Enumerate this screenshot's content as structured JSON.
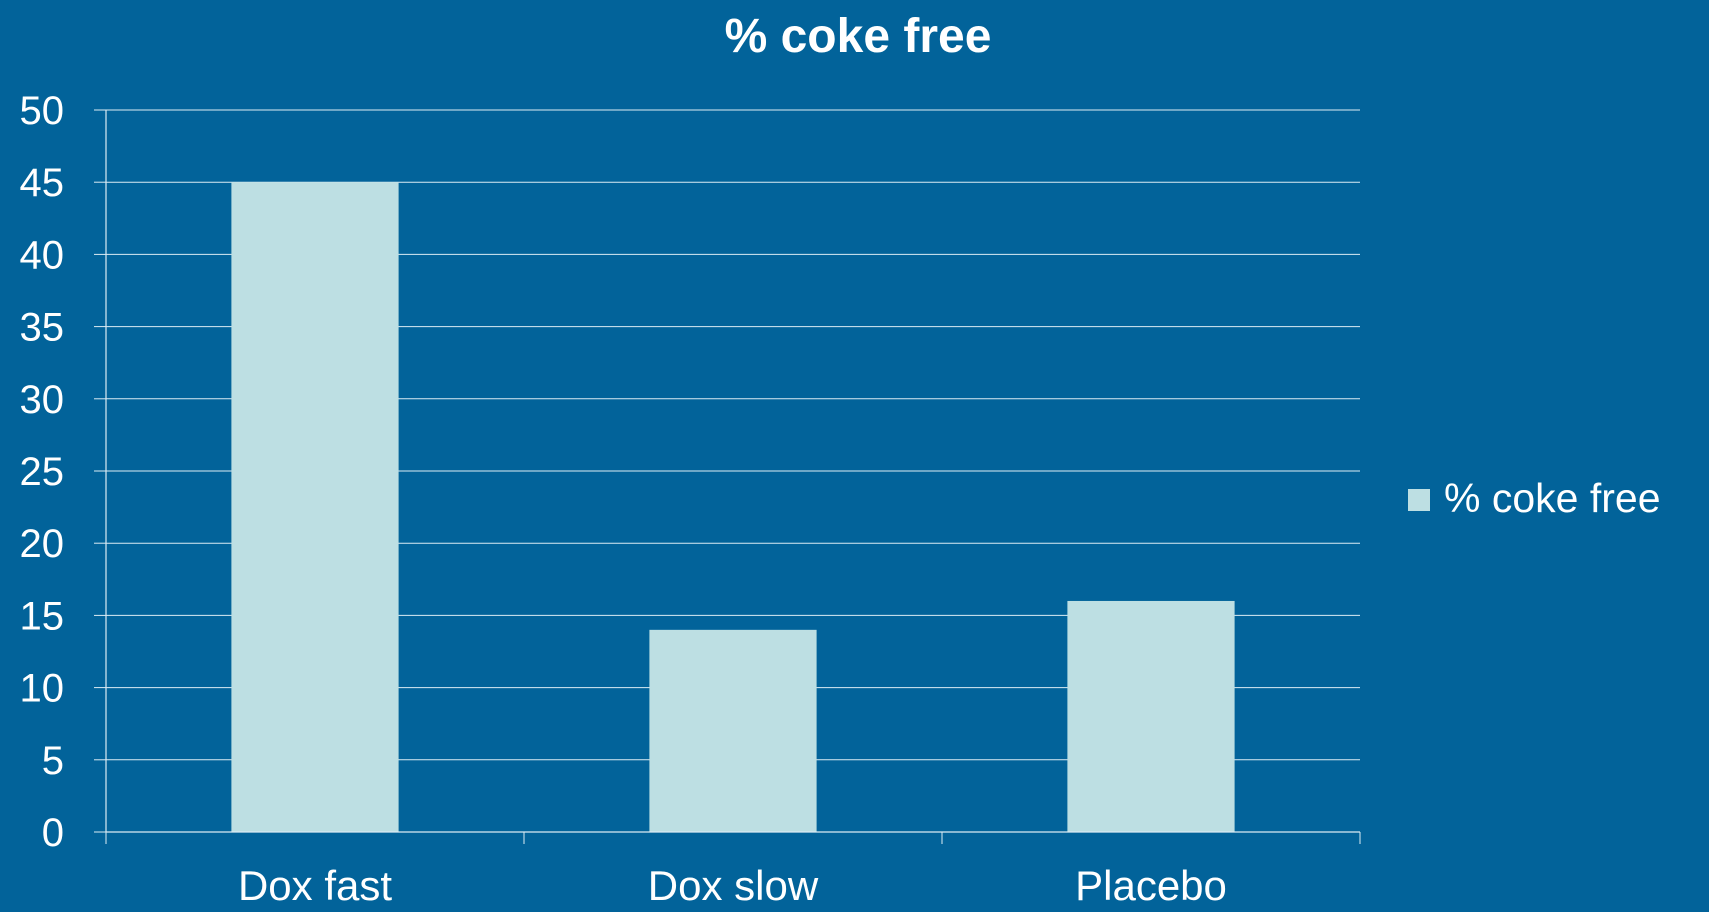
{
  "chart_data": {
    "type": "bar",
    "title": "% coke free",
    "categories": [
      "Dox fast",
      "Dox slow",
      "Placebo"
    ],
    "series": [
      {
        "name": "% coke free",
        "values": [
          45,
          14,
          16
        ]
      }
    ],
    "xlabel": "",
    "ylabel": "",
    "ylim": [
      0,
      50
    ],
    "yticks": [
      0,
      5,
      10,
      15,
      20,
      25,
      30,
      35,
      40,
      45,
      50
    ],
    "grid": true,
    "legend": "right"
  },
  "colors": {
    "background": "#02639a",
    "bar": "#bddfe3",
    "gridline": "#dcecf4",
    "text": "#ffffff"
  }
}
